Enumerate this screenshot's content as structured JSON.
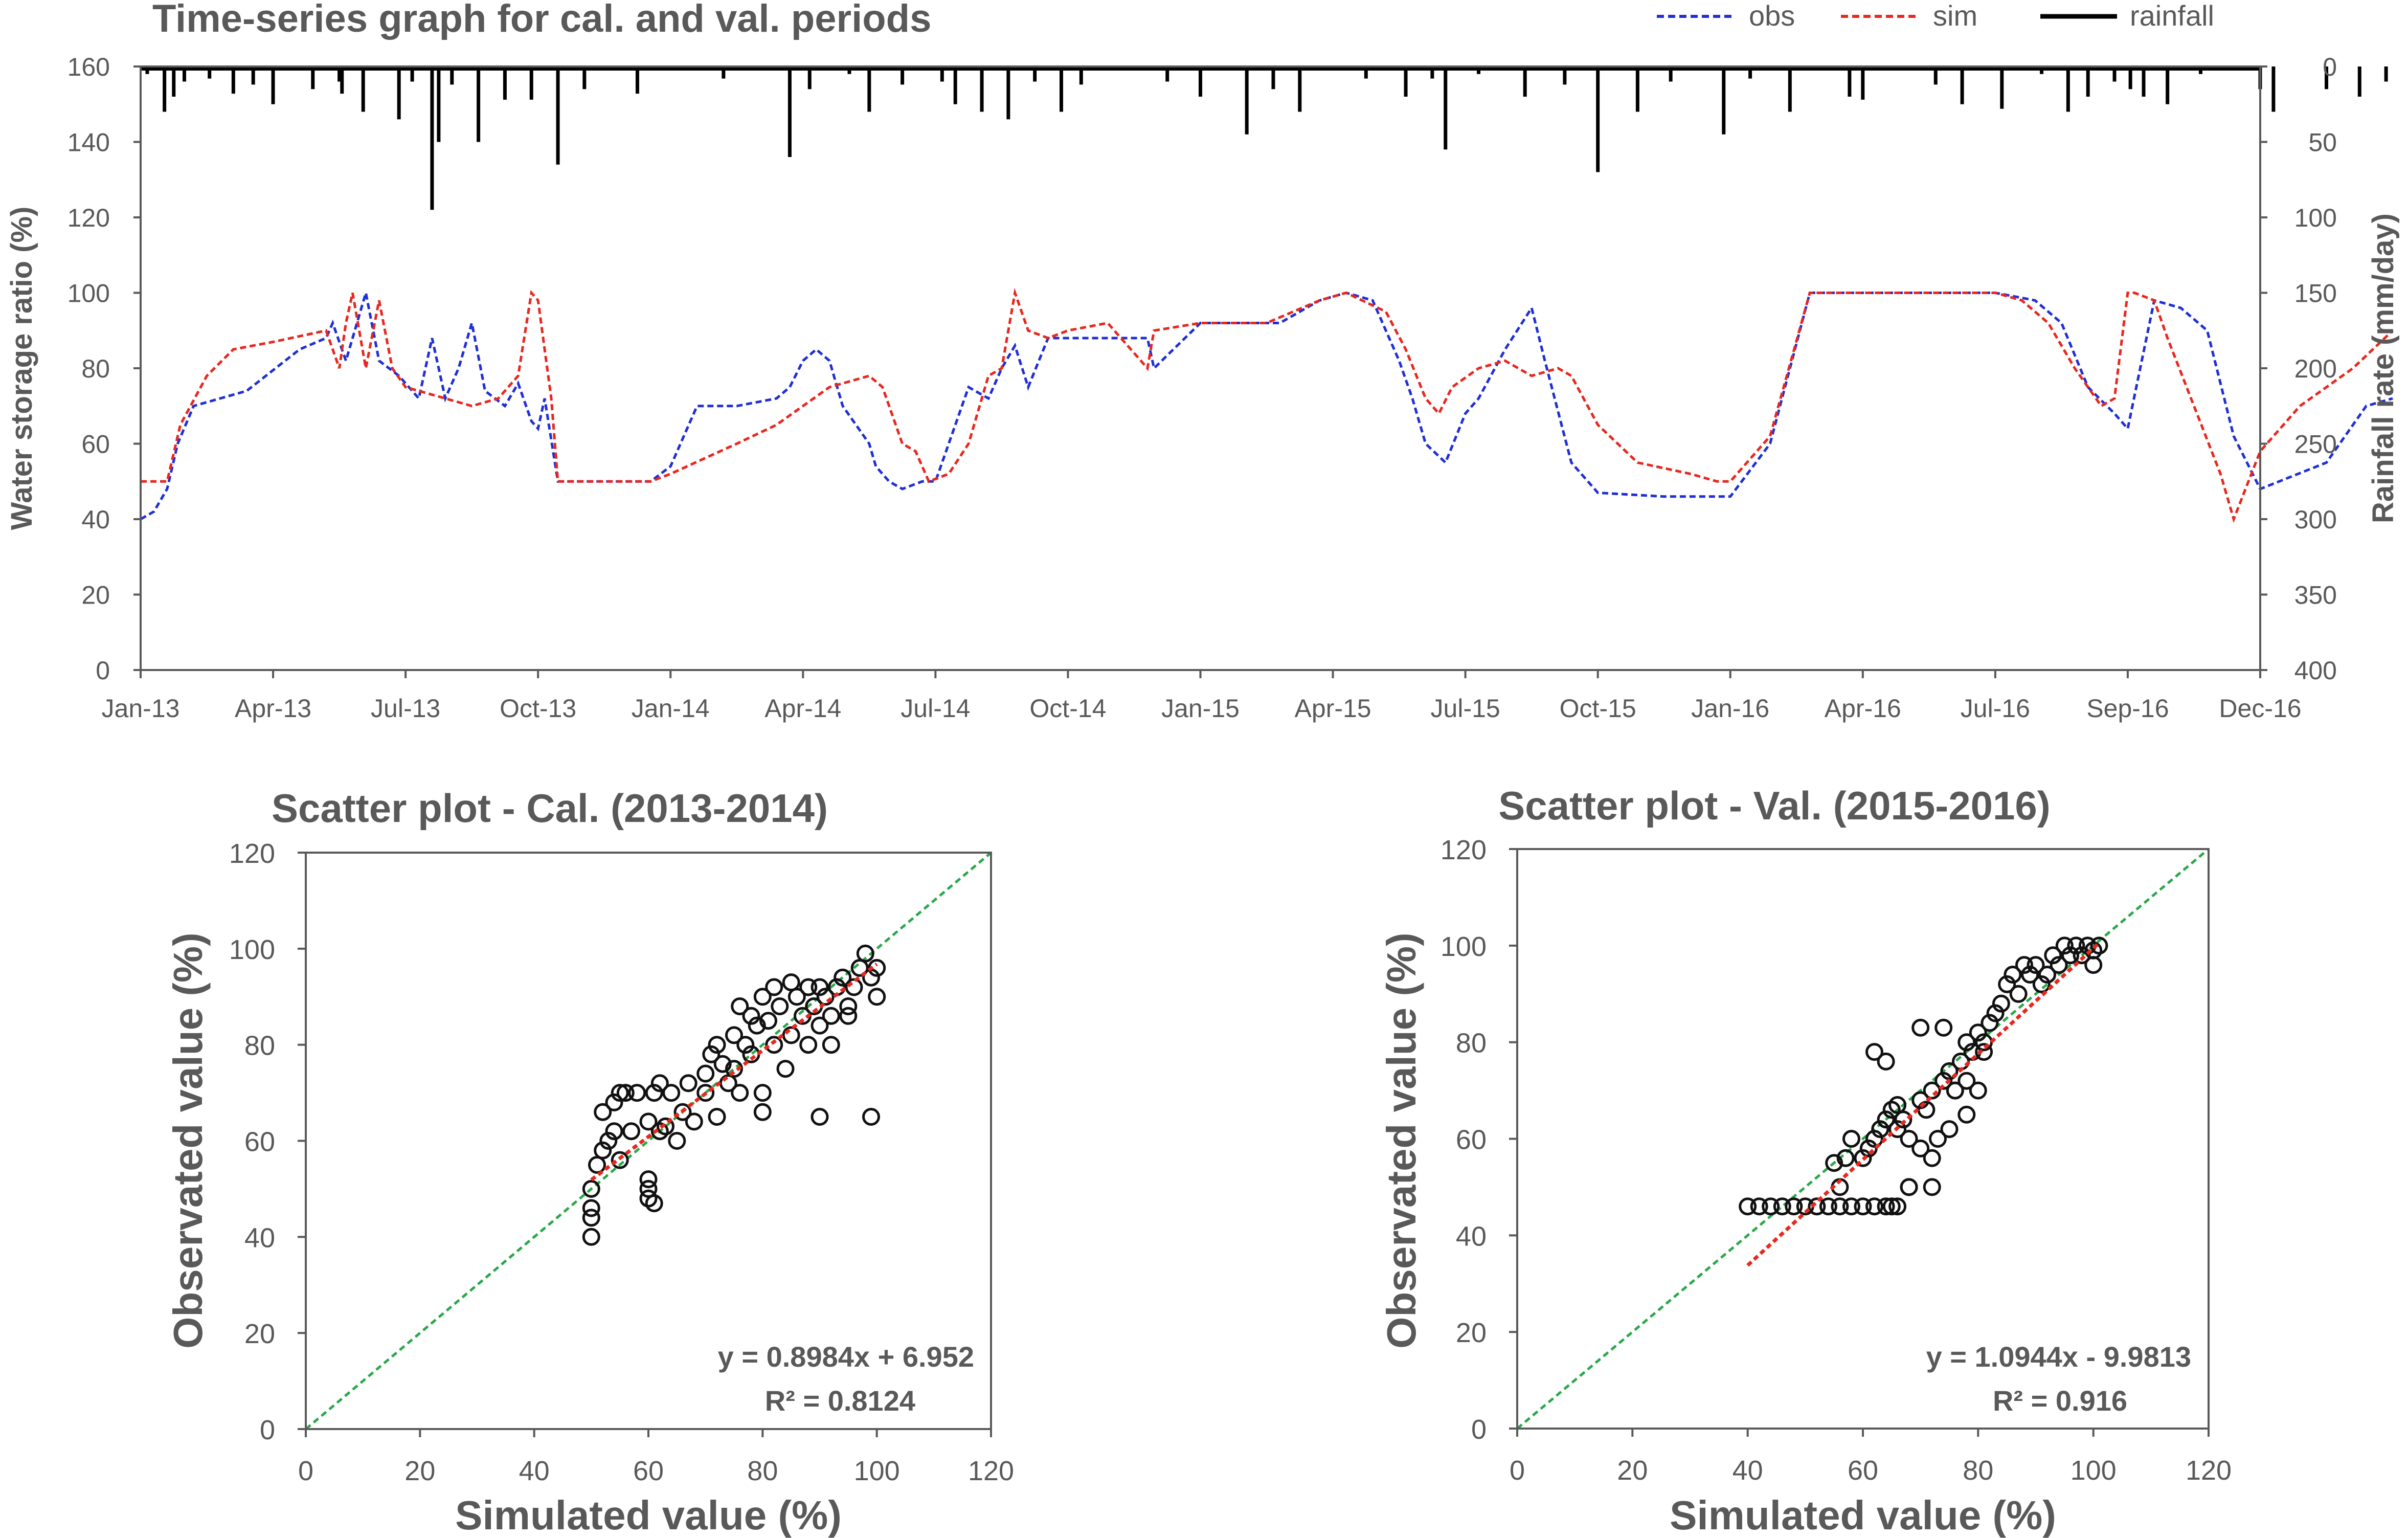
{
  "chart_data": [
    {
      "type": "line",
      "title": "Time-series graph for cal. and val. periods",
      "ylabel": "Water storage ratio (%)",
      "y2label": "Rainfall rate (mm/day)",
      "ylim": [
        0,
        160
      ],
      "y2lim": [
        0,
        400
      ],
      "y2_inverted": true,
      "yticks": [
        "0",
        "20",
        "40",
        "60",
        "80",
        "100",
        "120",
        "140",
        "160"
      ],
      "y2ticks": [
        "0",
        "50",
        "100",
        "150",
        "200",
        "250",
        "300",
        "350",
        "400"
      ],
      "xticks": [
        "Jan-13",
        "Apr-13",
        "Jul-13",
        "Oct-13",
        "Jan-14",
        "Apr-14",
        "Jul-14",
        "Oct-14",
        "Jan-15",
        "Apr-15",
        "Jul-15",
        "Oct-15",
        "Jan-16",
        "Apr-16",
        "Jul-16",
        "Sep-16",
        "Dec-16"
      ],
      "legend_position": "top-right",
      "colors": {
        "obs": "#1f2fd6",
        "sim": "#e8271e",
        "rainfall": "#000000"
      },
      "series": [
        {
          "name": "obs",
          "style": "dashed",
          "x": [
            0,
            0.1,
            0.2,
            0.28,
            0.4,
            0.6,
            0.8,
            1.2,
            1.4,
            1.45,
            1.55,
            1.7,
            1.8,
            1.95,
            2.1,
            2.2,
            2.3,
            2.4,
            2.5,
            2.6,
            2.75,
            2.85,
            2.95,
            3.0,
            3.05,
            3.15,
            3.3,
            3.5,
            3.85,
            4.0,
            4.2,
            4.5,
            4.8,
            4.9,
            5.0,
            5.1,
            5.2,
            5.3,
            5.4,
            5.5,
            5.55,
            5.65,
            5.75,
            5.9,
            6.0,
            6.1,
            6.25,
            6.4,
            6.5,
            6.6,
            6.7,
            6.85,
            7.0,
            7.3,
            7.6,
            7.65,
            8.0,
            8.3,
            8.6,
            8.9,
            9.1,
            9.3,
            9.5,
            9.6,
            9.7,
            9.85,
            10.0,
            10.1,
            10.3,
            10.5,
            10.6,
            10.8,
            11.0,
            11.5,
            11.8,
            12.0,
            12.3,
            12.6,
            13.0,
            13.3,
            13.6,
            13.8,
            14.0,
            14.3,
            14.5,
            14.7,
            14.9,
            15.0,
            15.2,
            15.4,
            15.6,
            15.8,
            16.0,
            16.5,
            16.8,
            17.0
          ],
          "y": [
            40,
            42,
            48,
            60,
            70,
            72,
            74,
            85,
            88,
            92,
            82,
            100,
            82,
            78,
            72,
            88,
            72,
            80,
            92,
            74,
            70,
            76,
            66,
            64,
            72,
            50,
            50,
            50,
            50,
            54,
            70,
            70,
            72,
            75,
            82,
            85,
            82,
            70,
            65,
            60,
            54,
            50,
            48,
            50,
            50,
            60,
            75,
            72,
            80,
            86,
            75,
            88,
            88,
            88,
            88,
            80,
            92,
            92,
            92,
            98,
            100,
            98,
            82,
            72,
            60,
            55,
            68,
            72,
            85,
            96,
            82,
            55,
            47,
            46,
            46,
            46,
            60,
            100,
            100,
            100,
            100,
            100,
            100,
            98,
            92,
            75,
            68,
            64,
            98,
            96,
            90,
            62,
            48,
            55,
            70,
            72
          ]
        },
        {
          "name": "sim",
          "style": "dashed",
          "x": [
            0,
            0.1,
            0.2,
            0.3,
            0.5,
            0.7,
            1.0,
            1.4,
            1.5,
            1.55,
            1.6,
            1.7,
            1.8,
            1.9,
            2.0,
            2.1,
            2.3,
            2.5,
            2.7,
            2.85,
            2.95,
            3.0,
            3.05,
            3.1,
            3.15,
            3.5,
            3.85,
            4.0,
            4.5,
            4.8,
            5.2,
            5.5,
            5.6,
            5.75,
            5.85,
            5.95,
            6.1,
            6.25,
            6.4,
            6.5,
            6.6,
            6.7,
            6.85,
            7.0,
            7.3,
            7.6,
            7.65,
            8.0,
            8.5,
            8.9,
            9.1,
            9.4,
            9.55,
            9.7,
            9.8,
            9.9,
            10.1,
            10.3,
            10.5,
            10.7,
            10.8,
            11.0,
            11.3,
            11.7,
            11.9,
            12.0,
            12.3,
            12.6,
            13.0,
            13.5,
            14.0,
            14.2,
            14.4,
            14.6,
            14.8,
            14.9,
            15.0,
            15.05,
            15.2,
            15.3,
            15.5,
            15.7,
            15.8,
            16.0,
            16.3,
            16.7,
            17.0
          ],
          "y": [
            50,
            50,
            50,
            65,
            78,
            85,
            87,
            90,
            80,
            92,
            100,
            80,
            98,
            80,
            75,
            74,
            72,
            70,
            72,
            78,
            100,
            98,
            85,
            72,
            50,
            50,
            50,
            52,
            60,
            65,
            75,
            78,
            75,
            60,
            58,
            50,
            52,
            60,
            78,
            80,
            100,
            90,
            88,
            90,
            92,
            80,
            90,
            92,
            92,
            98,
            100,
            95,
            85,
            72,
            68,
            75,
            80,
            82,
            78,
            80,
            78,
            65,
            55,
            52,
            50,
            50,
            62,
            100,
            100,
            100,
            100,
            98,
            92,
            80,
            70,
            72,
            100,
            100,
            98,
            88,
            70,
            52,
            40,
            58,
            70,
            80,
            90
          ]
        },
        {
          "name": "rainfall",
          "style": "bars",
          "axis": "right",
          "x": [
            0.05,
            0.18,
            0.25,
            0.33,
            0.52,
            0.7,
            0.85,
            1.0,
            1.3,
            1.5,
            1.52,
            1.68,
            1.95,
            2.05,
            2.2,
            2.25,
            2.35,
            2.55,
            2.75,
            2.95,
            3.15,
            3.35,
            3.75,
            4.4,
            4.9,
            5.05,
            5.35,
            5.5,
            5.75,
            6.05,
            6.15,
            6.35,
            6.55,
            6.75,
            6.95,
            7.1,
            7.75,
            8.0,
            8.35,
            8.55,
            8.75,
            9.25,
            9.55,
            9.75,
            9.85,
            10.1,
            10.45,
            10.75,
            11.0,
            11.3,
            11.55,
            11.95,
            12.15,
            12.45,
            12.9,
            13.0,
            13.55,
            13.75,
            14.05,
            14.35,
            14.55,
            14.7,
            14.9,
            15.02,
            15.12,
            15.3,
            15.55,
            16.0,
            16.1,
            16.5,
            16.75,
            16.95
          ],
          "y": [
            5,
            30,
            20,
            10,
            8,
            18,
            12,
            25,
            15,
            10,
            18,
            30,
            35,
            10,
            95,
            50,
            12,
            50,
            22,
            22,
            65,
            15,
            18,
            8,
            60,
            15,
            5,
            30,
            12,
            10,
            25,
            30,
            35,
            10,
            30,
            12,
            10,
            20,
            45,
            15,
            30,
            8,
            20,
            8,
            55,
            5,
            20,
            12,
            70,
            30,
            10,
            45,
            8,
            30,
            20,
            22,
            12,
            25,
            28,
            5,
            30,
            20,
            10,
            15,
            20,
            25,
            5,
            15,
            30,
            15,
            20,
            10
          ]
        }
      ]
    },
    {
      "type": "scatter",
      "title": "Scatter plot - Cal. (2013-2014)",
      "xlabel": "Simulated value (%)",
      "ylabel": "Observated value (%)",
      "xlim": [
        0,
        120
      ],
      "ylim": [
        0,
        120
      ],
      "xticks": [
        "0",
        "20",
        "40",
        "60",
        "80",
        "100",
        "120"
      ],
      "yticks": [
        "0",
        "20",
        "40",
        "60",
        "80",
        "100",
        "120"
      ],
      "equation": "y = 0.8984x + 6.952",
      "r2": "R² = 0.8124",
      "trendline": {
        "slope": 0.8984,
        "intercept": 6.952,
        "color": "#e8271e",
        "x_range": [
          50,
          100
        ]
      },
      "one_to_one": {
        "color": "#2aa84a"
      },
      "points": {
        "x": [
          50,
          50,
          50,
          51,
          52,
          53,
          54,
          55,
          55,
          56,
          57,
          58,
          60,
          60,
          60,
          61,
          62,
          63,
          64,
          65,
          66,
          67,
          68,
          70,
          70,
          71,
          72,
          72,
          73,
          74,
          75,
          75,
          76,
          76,
          77,
          78,
          78,
          79,
          80,
          80,
          81,
          82,
          82,
          83,
          84,
          85,
          85,
          86,
          87,
          88,
          88,
          89,
          90,
          90,
          91,
          92,
          93,
          94,
          95,
          96,
          97,
          98,
          99,
          100,
          100,
          90,
          99,
          95,
          92,
          80,
          60,
          61,
          62,
          50,
          52,
          54
        ],
        "y": [
          40,
          44,
          50,
          55,
          58,
          60,
          62,
          70,
          56,
          70,
          62,
          70,
          48,
          52,
          64,
          70,
          62,
          63,
          70,
          60,
          66,
          72,
          64,
          70,
          74,
          78,
          65,
          80,
          76,
          72,
          75,
          82,
          70,
          88,
          80,
          78,
          86,
          84,
          70,
          90,
          85,
          80,
          92,
          88,
          75,
          82,
          93,
          90,
          86,
          80,
          92,
          88,
          84,
          92,
          90,
          86,
          92,
          94,
          88,
          92,
          96,
          99,
          94,
          90,
          96,
          65,
          65,
          86,
          80,
          66,
          50,
          47,
          72,
          46,
          66,
          68
        ]
      }
    },
    {
      "type": "scatter",
      "title": "Scatter plot - Val. (2015-2016)",
      "xlabel": "Simulated value (%)",
      "ylabel": "Observated value (%)",
      "xlim": [
        0,
        120
      ],
      "ylim": [
        0,
        120
      ],
      "xticks": [
        "0",
        "20",
        "40",
        "60",
        "80",
        "100",
        "120"
      ],
      "yticks": [
        "0",
        "20",
        "40",
        "60",
        "80",
        "100",
        "120"
      ],
      "equation": "y = 1.0944x - 9.9813",
      "r2": "R² = 0.916",
      "trendline": {
        "slope": 1.0944,
        "intercept": -9.9813,
        "color": "#e8271e",
        "x_range": [
          40,
          101
        ]
      },
      "one_to_one": {
        "color": "#2aa84a"
      },
      "points": {
        "x": [
          40,
          42,
          44,
          46,
          48,
          50,
          52,
          54,
          55,
          56,
          57,
          58,
          60,
          60,
          61,
          62,
          63,
          64,
          65,
          65,
          66,
          67,
          68,
          68,
          70,
          70,
          71,
          72,
          72,
          73,
          74,
          75,
          75,
          76,
          77,
          78,
          78,
          79,
          80,
          80,
          81,
          82,
          83,
          84,
          85,
          86,
          87,
          88,
          89,
          90,
          91,
          92,
          93,
          94,
          95,
          96,
          97,
          98,
          99,
          100,
          101,
          100,
          62,
          64,
          66,
          70,
          74,
          76,
          78,
          81,
          68,
          72,
          56,
          58,
          62,
          64,
          66
        ],
        "y": [
          46,
          46,
          46,
          46,
          46,
          46,
          46,
          46,
          55,
          50,
          56,
          60,
          56,
          46,
          58,
          60,
          62,
          64,
          66,
          46,
          62,
          64,
          60,
          50,
          68,
          58,
          66,
          70,
          50,
          60,
          72,
          74,
          62,
          70,
          76,
          72,
          80,
          78,
          82,
          70,
          80,
          84,
          86,
          88,
          92,
          94,
          90,
          96,
          94,
          96,
          92,
          94,
          98,
          96,
          100,
          98,
          100,
          98,
          100,
          99,
          100,
          96,
          78,
          76,
          67,
          83,
          83,
          70,
          65,
          78,
          50,
          56,
          46,
          46,
          46,
          46,
          46
        ]
      }
    }
  ]
}
